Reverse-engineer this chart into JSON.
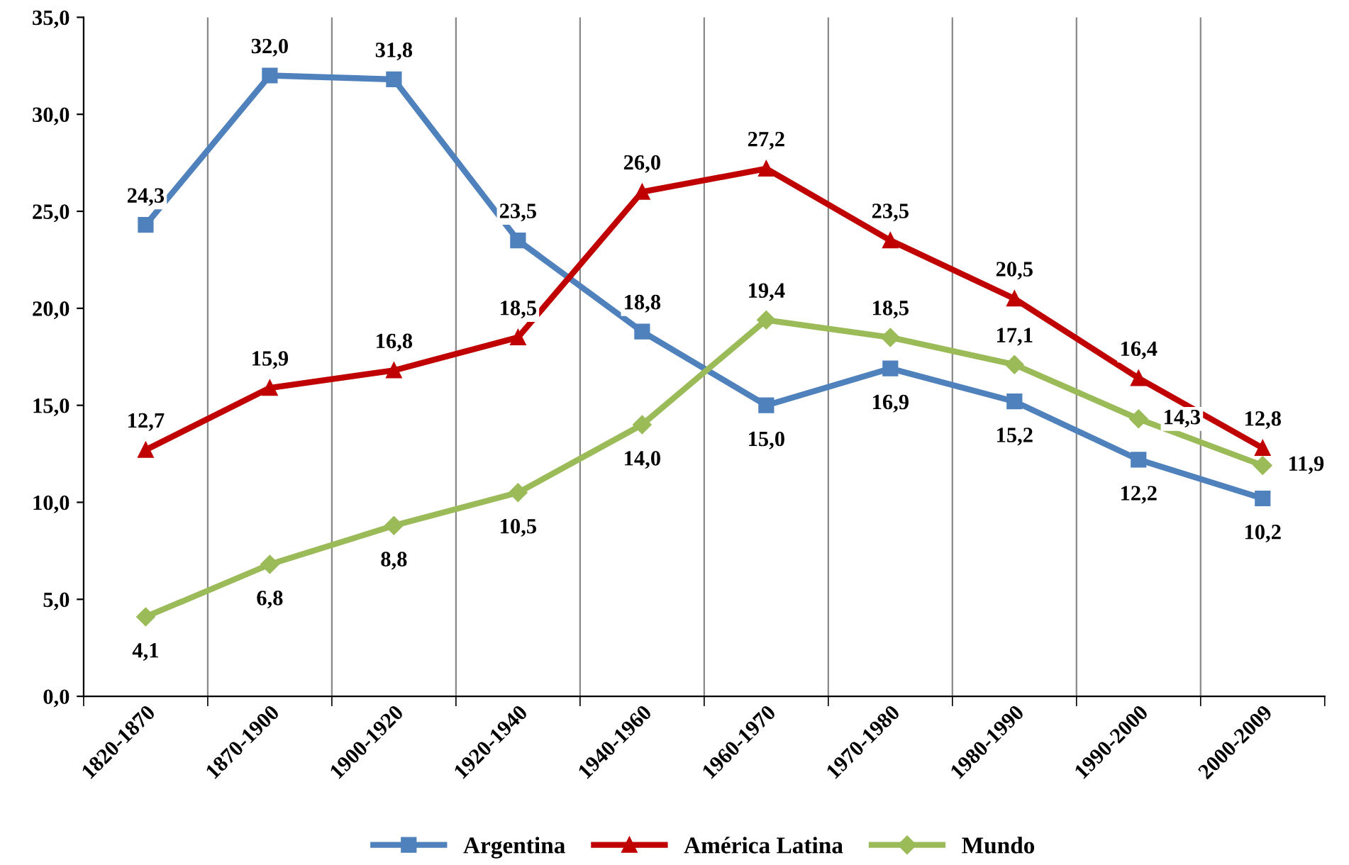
{
  "chart_data": {
    "type": "line",
    "categories": [
      "1820-1870",
      "1870-1900",
      "1900-1920",
      "1920-1940",
      "1940-1960",
      "1960-1970",
      "1970-1980",
      "1980-1990",
      "1990-2000",
      "2000-2009"
    ],
    "series": [
      {
        "name": "Argentina",
        "color": "#4f81bd",
        "marker": "square",
        "values": [
          24.3,
          32.0,
          31.8,
          23.5,
          18.8,
          15.0,
          16.9,
          15.2,
          12.2,
          10.2
        ],
        "value_labels": [
          "24,3",
          "32,0",
          "31,8",
          "23,5",
          "18,8",
          "15,0",
          "16,9",
          "15,2",
          "12,2",
          "10,2"
        ]
      },
      {
        "name": "América Latina",
        "color": "#c00000",
        "marker": "triangle",
        "values": [
          12.7,
          15.9,
          16.8,
          18.5,
          26.0,
          27.2,
          23.5,
          20.5,
          16.4,
          12.8
        ],
        "value_labels": [
          "12,7",
          "15,9",
          "16,8",
          "18,5",
          "26,0",
          "27,2",
          "23,5",
          "20,5",
          "16,4",
          "12,8"
        ]
      },
      {
        "name": "Mundo",
        "color": "#9bbb59",
        "marker": "diamond",
        "values": [
          4.1,
          6.8,
          8.8,
          10.5,
          14.0,
          19.4,
          18.5,
          17.1,
          14.3,
          11.9
        ],
        "value_labels": [
          "4,1",
          "6,8",
          "8,8",
          "10,5",
          "14,0",
          "19,4",
          "18,5",
          "17,1",
          "14,3",
          "11,9"
        ]
      }
    ],
    "ylim": [
      0,
      35
    ],
    "yticks": [
      {
        "value": 0,
        "label": "0,0"
      },
      {
        "value": 5,
        "label": "5,0"
      },
      {
        "value": 10,
        "label": "10,0"
      },
      {
        "value": 15,
        "label": "15,0"
      },
      {
        "value": 20,
        "label": "20,0"
      },
      {
        "value": 25,
        "label": "25,0"
      },
      {
        "value": 30,
        "label": "30,0"
      },
      {
        "value": 35,
        "label": "35,0"
      }
    ],
    "grid": "x",
    "legend": "bottom",
    "line_style": "solid"
  }
}
